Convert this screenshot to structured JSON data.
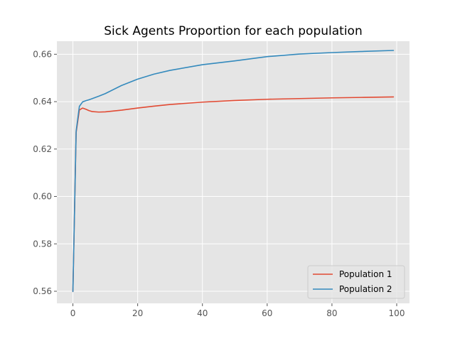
{
  "chart_data": {
    "type": "line",
    "title": "Sick Agents Proportion for each population",
    "xlabel": "",
    "ylabel": "",
    "xlim": [
      -4.95,
      103.95
    ],
    "ylim": [
      0.5549,
      0.6655
    ],
    "xticks": [
      0,
      20,
      40,
      60,
      80,
      100
    ],
    "xtick_labels": [
      "0",
      "20",
      "40",
      "60",
      "80",
      "100"
    ],
    "yticks": [
      0.56,
      0.58,
      0.6,
      0.62,
      0.64,
      0.66
    ],
    "ytick_labels": [
      "0.56",
      "0.58",
      "0.60",
      "0.62",
      "0.64",
      "0.66"
    ],
    "grid": true,
    "legend_position": "lower-right",
    "x": [
      0,
      1,
      2,
      3,
      4,
      5,
      6,
      8,
      10,
      15,
      20,
      25,
      30,
      40,
      50,
      60,
      70,
      80,
      90,
      99
    ],
    "series": [
      {
        "name": "Population 1",
        "color": "#E24A33",
        "values": [
          0.5599,
          0.627,
          0.6365,
          0.6373,
          0.6368,
          0.6362,
          0.6358,
          0.6356,
          0.6357,
          0.6364,
          0.6373,
          0.6381,
          0.6388,
          0.6398,
          0.6405,
          0.641,
          0.6413,
          0.6416,
          0.6418,
          0.642
        ]
      },
      {
        "name": "Population 2",
        "color": "#348ABD",
        "values": [
          0.5599,
          0.6275,
          0.638,
          0.6399,
          0.6404,
          0.6408,
          0.6413,
          0.6423,
          0.6434,
          0.6468,
          0.6495,
          0.6516,
          0.6532,
          0.6556,
          0.6572,
          0.659,
          0.6601,
          0.6607,
          0.6612,
          0.6616
        ]
      }
    ]
  }
}
